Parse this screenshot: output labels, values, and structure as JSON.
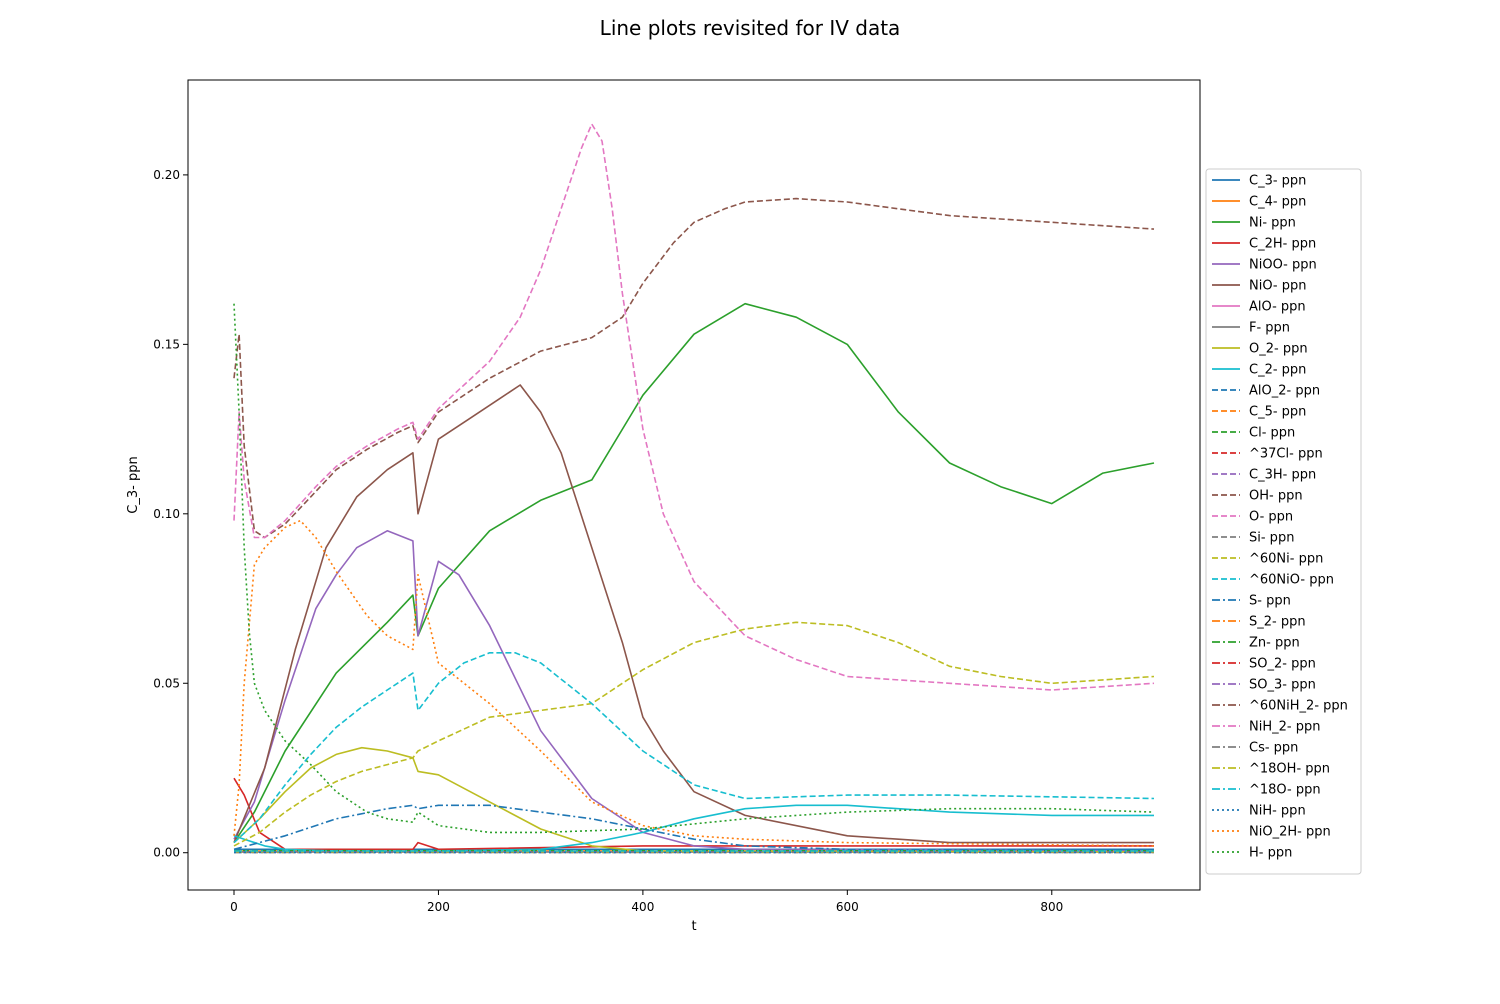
{
  "chart_data": {
    "type": "line",
    "title": "Line plots revisited for IV data",
    "xlabel": "t",
    "ylabel": "C_3- ppn",
    "xlim": [
      -45,
      945
    ],
    "ylim": [
      -0.011,
      0.228
    ],
    "xticks": [
      0,
      200,
      400,
      600,
      800
    ],
    "xtick_labels": [
      "0",
      "200",
      "400",
      "600",
      "800"
    ],
    "yticks": [
      0.0,
      0.05,
      0.1,
      0.15,
      0.2
    ],
    "ytick_labels": [
      "0.00",
      "0.05",
      "0.10",
      "0.15",
      "0.20"
    ],
    "grid": false,
    "legend_position": "right-outside",
    "series": [
      {
        "name": "C_3- ppn",
        "color": "#1f77b4",
        "dash": "solid",
        "x": [
          0,
          100,
          200,
          400,
          600,
          900
        ],
        "y": [
          0.001,
          0.001,
          0.001,
          0.001,
          0.001,
          0.001
        ]
      },
      {
        "name": "C_4- ppn",
        "color": "#ff7f0e",
        "dash": "solid",
        "x": [
          0,
          100,
          200,
          400,
          600,
          900
        ],
        "y": [
          0.0005,
          0.0005,
          0.0005,
          0.0005,
          0.0005,
          0.0005
        ]
      },
      {
        "name": "Ni- ppn",
        "color": "#2ca02c",
        "dash": "solid",
        "x": [
          0,
          20,
          50,
          100,
          150,
          175,
          180,
          200,
          250,
          300,
          350,
          400,
          450,
          500,
          550,
          600,
          650,
          700,
          750,
          800,
          850,
          900
        ],
        "y": [
          0.003,
          0.012,
          0.03,
          0.053,
          0.068,
          0.076,
          0.064,
          0.078,
          0.095,
          0.104,
          0.11,
          0.135,
          0.153,
          0.162,
          0.158,
          0.15,
          0.13,
          0.115,
          0.108,
          0.103,
          0.112,
          0.115
        ]
      },
      {
        "name": "C_2H- ppn",
        "color": "#d62728",
        "dash": "solid",
        "x": [
          0,
          10,
          25,
          50,
          100,
          175,
          180,
          200,
          400,
          900
        ],
        "y": [
          0.022,
          0.017,
          0.006,
          0.001,
          0.001,
          0.001,
          0.003,
          0.001,
          0.002,
          0.002
        ]
      },
      {
        "name": "NiOO- ppn",
        "color": "#9467bd",
        "dash": "solid",
        "x": [
          0,
          20,
          50,
          80,
          100,
          120,
          150,
          175,
          180,
          200,
          220,
          250,
          300,
          350,
          400,
          450,
          500,
          900
        ],
        "y": [
          0.004,
          0.015,
          0.045,
          0.072,
          0.082,
          0.09,
          0.095,
          0.092,
          0.064,
          0.086,
          0.082,
          0.067,
          0.036,
          0.016,
          0.006,
          0.002,
          0.001,
          0.0005
        ]
      },
      {
        "name": "NiO- ppn",
        "color": "#8c564b",
        "dash": "solid",
        "x": [
          0,
          30,
          60,
          90,
          120,
          150,
          175,
          180,
          200,
          230,
          260,
          280,
          300,
          320,
          350,
          380,
          400,
          420,
          450,
          500,
          600,
          700,
          900
        ],
        "y": [
          0.003,
          0.025,
          0.06,
          0.09,
          0.105,
          0.113,
          0.118,
          0.1,
          0.122,
          0.128,
          0.134,
          0.138,
          0.13,
          0.118,
          0.09,
          0.062,
          0.04,
          0.03,
          0.018,
          0.011,
          0.005,
          0.003,
          0.003
        ]
      },
      {
        "name": "AlO- ppn",
        "color": "#e377c2",
        "dash": "solid",
        "x": [
          0,
          100,
          200,
          400,
          600,
          900
        ],
        "y": [
          0.0002,
          0.0002,
          0.0002,
          0.0002,
          0.0002,
          0.0002
        ]
      },
      {
        "name": "F- ppn",
        "color": "#7f7f7f",
        "dash": "solid",
        "x": [
          0,
          100,
          200,
          400,
          600,
          900
        ],
        "y": [
          0.0002,
          0.0002,
          0.0002,
          0.0002,
          0.0002,
          0.0002
        ]
      },
      {
        "name": "O_2- ppn",
        "color": "#bcbd22",
        "dash": "solid",
        "x": [
          0,
          25,
          50,
          75,
          100,
          125,
          150,
          175,
          180,
          200,
          250,
          300,
          350,
          400,
          900
        ],
        "y": [
          0.003,
          0.01,
          0.018,
          0.025,
          0.029,
          0.031,
          0.03,
          0.028,
          0.024,
          0.023,
          0.015,
          0.007,
          0.002,
          0.0005,
          0.0002
        ]
      },
      {
        "name": "C_2- ppn",
        "color": "#17becf",
        "dash": "solid",
        "x": [
          0,
          10,
          30,
          50,
          100,
          200,
          300,
          350,
          400,
          450,
          500,
          550,
          600,
          700,
          800,
          900
        ],
        "y": [
          0.005,
          0.004,
          0.002,
          0.001,
          0.0005,
          0.0005,
          0.001,
          0.003,
          0.006,
          0.01,
          0.013,
          0.014,
          0.014,
          0.012,
          0.011,
          0.011
        ]
      },
      {
        "name": "AlO_2- ppn",
        "color": "#1f77b4",
        "dash": "dashed",
        "x": [
          0,
          100,
          200,
          400,
          600,
          900
        ],
        "y": [
          0.0003,
          0.0003,
          0.0003,
          0.0003,
          0.0003,
          0.0003
        ]
      },
      {
        "name": "C_5- ppn",
        "color": "#ff7f0e",
        "dash": "dashed",
        "x": [
          0,
          100,
          200,
          400,
          600,
          900
        ],
        "y": [
          0.0003,
          0.0003,
          0.0003,
          0.0003,
          0.0003,
          0.0003
        ]
      },
      {
        "name": "Cl- ppn",
        "color": "#2ca02c",
        "dash": "dashed",
        "x": [
          0,
          100,
          200,
          400,
          600,
          900
        ],
        "y": [
          0.0006,
          0.0006,
          0.0006,
          0.0006,
          0.0006,
          0.0006
        ]
      },
      {
        "name": "^37Cl- ppn",
        "color": "#d62728",
        "dash": "dashed",
        "x": [
          0,
          100,
          200,
          400,
          600,
          900
        ],
        "y": [
          0.0002,
          0.0002,
          0.0002,
          0.0002,
          0.0002,
          0.0002
        ]
      },
      {
        "name": "C_3H- ppn",
        "color": "#9467bd",
        "dash": "dashed",
        "x": [
          0,
          100,
          200,
          400,
          600,
          900
        ],
        "y": [
          0.0002,
          0.0002,
          0.0002,
          0.0002,
          0.0002,
          0.0002
        ]
      },
      {
        "name": "OH- ppn",
        "color": "#8c564b",
        "dash": "dashed",
        "x": [
          0,
          5,
          10,
          20,
          30,
          50,
          75,
          100,
          130,
          160,
          175,
          180,
          200,
          250,
          300,
          350,
          380,
          400,
          430,
          450,
          480,
          500,
          550,
          600,
          650,
          700,
          750,
          800,
          850,
          900
        ],
        "y": [
          0.14,
          0.153,
          0.12,
          0.095,
          0.093,
          0.097,
          0.105,
          0.113,
          0.119,
          0.124,
          0.126,
          0.121,
          0.13,
          0.14,
          0.148,
          0.152,
          0.158,
          0.168,
          0.18,
          0.186,
          0.19,
          0.192,
          0.193,
          0.192,
          0.19,
          0.188,
          0.187,
          0.186,
          0.185,
          0.184
        ]
      },
      {
        "name": "O- ppn",
        "color": "#e377c2",
        "dash": "dashed",
        "x": [
          0,
          5,
          10,
          20,
          30,
          50,
          80,
          100,
          130,
          160,
          175,
          180,
          200,
          250,
          280,
          300,
          320,
          340,
          350,
          360,
          370,
          380,
          400,
          420,
          450,
          500,
          550,
          600,
          700,
          800,
          900
        ],
        "y": [
          0.098,
          0.13,
          0.11,
          0.093,
          0.093,
          0.098,
          0.108,
          0.114,
          0.12,
          0.125,
          0.127,
          0.122,
          0.131,
          0.145,
          0.158,
          0.172,
          0.19,
          0.208,
          0.215,
          0.21,
          0.19,
          0.165,
          0.125,
          0.1,
          0.08,
          0.064,
          0.057,
          0.052,
          0.05,
          0.048,
          0.05
        ]
      },
      {
        "name": "Si- ppn",
        "color": "#7f7f7f",
        "dash": "dashed",
        "x": [
          0,
          100,
          200,
          400,
          600,
          900
        ],
        "y": [
          0.0001,
          0.0001,
          0.0001,
          0.0001,
          0.0001,
          0.0001
        ]
      },
      {
        "name": "^60Ni- ppn",
        "color": "#bcbd22",
        "dash": "dashed",
        "x": [
          0,
          25,
          50,
          75,
          100,
          125,
          150,
          175,
          180,
          200,
          250,
          300,
          350,
          400,
          450,
          500,
          550,
          600,
          650,
          700,
          750,
          800,
          850,
          900
        ],
        "y": [
          0.002,
          0.006,
          0.012,
          0.017,
          0.021,
          0.024,
          0.026,
          0.028,
          0.03,
          0.033,
          0.04,
          0.042,
          0.044,
          0.054,
          0.062,
          0.066,
          0.068,
          0.067,
          0.062,
          0.055,
          0.052,
          0.05,
          0.051,
          0.052
        ]
      },
      {
        "name": "^60NiO- ppn",
        "color": "#17becf",
        "dash": "dashed",
        "x": [
          0,
          25,
          50,
          75,
          100,
          125,
          150,
          175,
          180,
          200,
          225,
          250,
          275,
          300,
          350,
          400,
          450,
          500,
          600,
          700,
          900
        ],
        "y": [
          0.003,
          0.01,
          0.02,
          0.029,
          0.037,
          0.043,
          0.048,
          0.053,
          0.042,
          0.05,
          0.056,
          0.059,
          0.059,
          0.056,
          0.044,
          0.03,
          0.02,
          0.016,
          0.017,
          0.017,
          0.016
        ]
      },
      {
        "name": "S- ppn",
        "color": "#1f77b4",
        "dash": "dashdot",
        "x": [
          0,
          50,
          100,
          150,
          175,
          180,
          200,
          250,
          300,
          350,
          400,
          450,
          500,
          600,
          700,
          900
        ],
        "y": [
          0.001,
          0.005,
          0.01,
          0.013,
          0.014,
          0.013,
          0.014,
          0.014,
          0.012,
          0.01,
          0.007,
          0.004,
          0.002,
          0.001,
          0.001,
          0.001
        ]
      },
      {
        "name": "S_2- ppn",
        "color": "#ff7f0e",
        "dash": "dashdot",
        "x": [
          0,
          100,
          200,
          400,
          600,
          900
        ],
        "y": [
          0.0002,
          0.0002,
          0.0002,
          0.0002,
          0.0002,
          0.0002
        ]
      },
      {
        "name": "Zn- ppn",
        "color": "#2ca02c",
        "dash": "dashdot",
        "x": [
          0,
          100,
          200,
          400,
          600,
          900
        ],
        "y": [
          0.0003,
          0.0003,
          0.0003,
          0.0003,
          0.0003,
          0.0003
        ]
      },
      {
        "name": "SO_2- ppn",
        "color": "#d62728",
        "dash": "dashdot",
        "x": [
          0,
          100,
          200,
          400,
          600,
          900
        ],
        "y": [
          0.0004,
          0.0004,
          0.0004,
          0.0004,
          0.0004,
          0.0004
        ]
      },
      {
        "name": "SO_3- ppn",
        "color": "#9467bd",
        "dash": "dashdot",
        "x": [
          0,
          100,
          200,
          400,
          600,
          900
        ],
        "y": [
          0.0002,
          0.0002,
          0.0002,
          0.0002,
          0.0002,
          0.0002
        ]
      },
      {
        "name": "^60NiH_2- ppn",
        "color": "#8c564b",
        "dash": "dashdot",
        "x": [
          0,
          100,
          200,
          400,
          600,
          900
        ],
        "y": [
          0.0002,
          0.0002,
          0.0002,
          0.0002,
          0.0002,
          0.0002
        ]
      },
      {
        "name": "NiH_2- ppn",
        "color": "#e377c2",
        "dash": "dashdot",
        "x": [
          0,
          100,
          200,
          400,
          600,
          900
        ],
        "y": [
          0.0002,
          0.0002,
          0.0002,
          0.0002,
          0.0002,
          0.0002
        ]
      },
      {
        "name": "Cs- ppn",
        "color": "#7f7f7f",
        "dash": "dashdot",
        "x": [
          0,
          100,
          200,
          400,
          600,
          900
        ],
        "y": [
          0.0001,
          0.0001,
          0.0001,
          0.0001,
          0.0001,
          0.0001
        ]
      },
      {
        "name": "^18OH- ppn",
        "color": "#bcbd22",
        "dash": "dashdot",
        "x": [
          0,
          100,
          200,
          400,
          600,
          900
        ],
        "y": [
          0.0003,
          0.0003,
          0.0003,
          0.0003,
          0.0003,
          0.0003
        ]
      },
      {
        "name": "^18O- ppn",
        "color": "#17becf",
        "dash": "dashdot",
        "x": [
          0,
          100,
          200,
          400,
          600,
          900
        ],
        "y": [
          0.0005,
          0.0005,
          0.0005,
          0.0005,
          0.0005,
          0.0005
        ]
      },
      {
        "name": "NiH- ppn",
        "color": "#1f77b4",
        "dash": "dotted",
        "x": [
          0,
          100,
          200,
          400,
          600,
          900
        ],
        "y": [
          0.0001,
          0.0001,
          0.0001,
          0.0001,
          0.0001,
          0.0001
        ]
      },
      {
        "name": "NiO_2H- ppn",
        "color": "#ff7f0e",
        "dash": "dotted",
        "x": [
          0,
          5,
          10,
          20,
          30,
          50,
          65,
          80,
          100,
          130,
          150,
          175,
          180,
          200,
          250,
          300,
          350,
          400,
          450,
          500,
          600,
          900
        ],
        "y": [
          0.005,
          0.02,
          0.05,
          0.085,
          0.09,
          0.096,
          0.098,
          0.093,
          0.083,
          0.07,
          0.064,
          0.06,
          0.082,
          0.056,
          0.044,
          0.03,
          0.015,
          0.008,
          0.005,
          0.004,
          0.003,
          0.002
        ]
      },
      {
        "name": "H- ppn",
        "color": "#2ca02c",
        "dash": "dotted",
        "x": [
          0,
          5,
          10,
          15,
          20,
          30,
          50,
          75,
          100,
          130,
          150,
          175,
          180,
          200,
          250,
          300,
          400,
          500,
          600,
          700,
          800,
          900
        ],
        "y": [
          0.162,
          0.13,
          0.09,
          0.065,
          0.05,
          0.042,
          0.033,
          0.026,
          0.018,
          0.012,
          0.01,
          0.009,
          0.012,
          0.008,
          0.006,
          0.006,
          0.007,
          0.01,
          0.012,
          0.013,
          0.013,
          0.012
        ]
      }
    ]
  }
}
